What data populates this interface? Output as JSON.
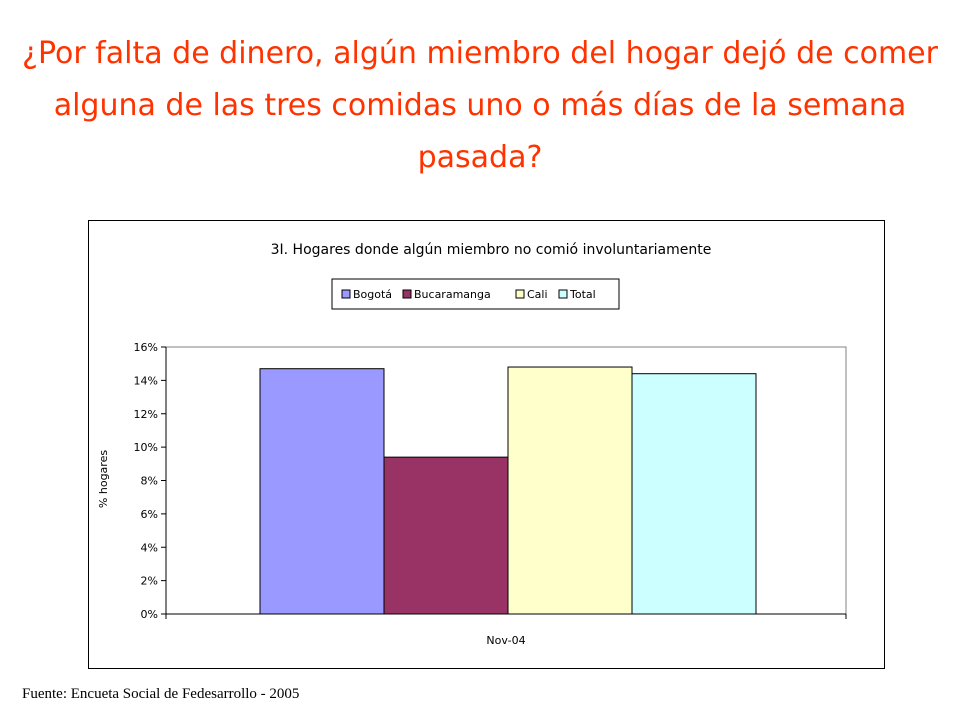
{
  "slide": {
    "title": "¿Por falta de dinero, algún miembro del hogar dejó de comer alguna de las tres comidas uno o más días de la semana pasada?",
    "source": "Fuente:  Encueta Social de Fedesarrollo - 2005"
  },
  "chart_data": {
    "type": "bar",
    "title": "3I. Hogares donde algún miembro no comió involuntariamente",
    "xlabel": "",
    "ylabel": "% hogares",
    "categories": [
      "Nov-04"
    ],
    "series": [
      {
        "name": "Bogotá",
        "values": [
          14.7
        ],
        "color": "#9999ff"
      },
      {
        "name": "Bucaramanga",
        "values": [
          9.4
        ],
        "color": "#993366"
      },
      {
        "name": "Cali",
        "values": [
          14.8
        ],
        "color": "#ffffcc"
      },
      {
        "name": "Total",
        "values": [
          14.4
        ],
        "color": "#ccffff"
      }
    ],
    "ylim": [
      0,
      16
    ],
    "yticks": [
      "0%",
      "2%",
      "4%",
      "6%",
      "8%",
      "10%",
      "12%",
      "14%",
      "16%"
    ],
    "grid": false,
    "legend_position": "top"
  }
}
